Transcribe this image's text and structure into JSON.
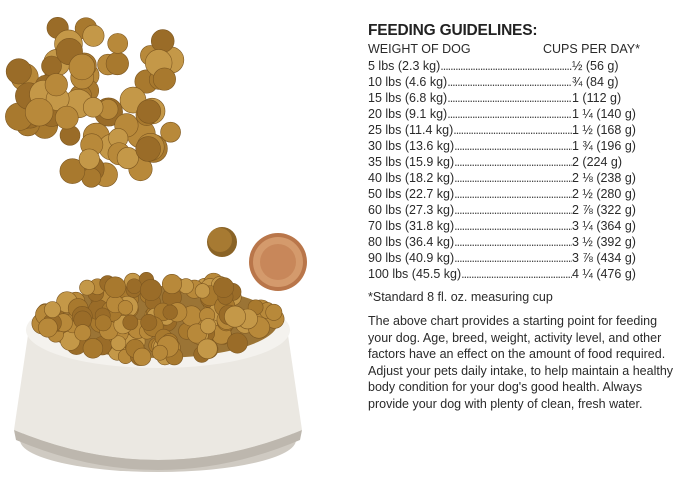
{
  "guidelines": {
    "title": "FEEDING GUIDELINES:",
    "col_weight": "WEIGHT OF DOG",
    "col_cups": "CUPS PER DAY*",
    "rows": [
      {
        "weight": "5 lbs (2.3 kg)",
        "cups": "½ (56 g)"
      },
      {
        "weight": "10 lbs (4.6 kg)",
        "cups": "¾ (84 g)"
      },
      {
        "weight": "15 lbs (6.8 kg)",
        "cups": "1 (112 g)"
      },
      {
        "weight": "20 lbs (9.1 kg)",
        "cups": "1 ¼ (140 g)"
      },
      {
        "weight": "25 lbs (11.4 kg)",
        "cups": "1 ½ (168 g)"
      },
      {
        "weight": "30 lbs (13.6 kg)",
        "cups": "1 ¾ (196 g)"
      },
      {
        "weight": "35 lbs (15.9 kg)",
        "cups": "2 (224 g)"
      },
      {
        "weight": "40 lbs (18.2 kg)",
        "cups": "2 ⅛ (238 g)"
      },
      {
        "weight": "50 lbs (22.7 kg)",
        "cups": "2 ½ (280 g)"
      },
      {
        "weight": "60 lbs (27.3 kg)",
        "cups": "2 ⅞ (322 g)"
      },
      {
        "weight": "70 lbs (31.8 kg)",
        "cups": "3 ¼ (364 g)"
      },
      {
        "weight": "80 lbs (36.4 kg)",
        "cups": "3 ½ (392 g)"
      },
      {
        "weight": "90 lbs (40.9 kg)",
        "cups": "3 ⅞ (434 g)"
      },
      {
        "weight": "100 lbs (45.5 kg)",
        "cups": "4 ¼ (476 g)"
      }
    ],
    "footnote": "*Standard 8 fl. oz. measuring cup",
    "paragraph": "The above chart provides a starting point for feeding your dog. Age, breed, weight, activity level, and other factors have an effect on the amount of food required. Adjust your pets daily intake, to help maintain a healthy body condition for your dog's good health. Always provide your dog with plenty of clean, fresh water."
  },
  "colors": {
    "kibble": "#b8893a",
    "bowl": "#e9e6e0",
    "coin": "#c98a5a"
  }
}
